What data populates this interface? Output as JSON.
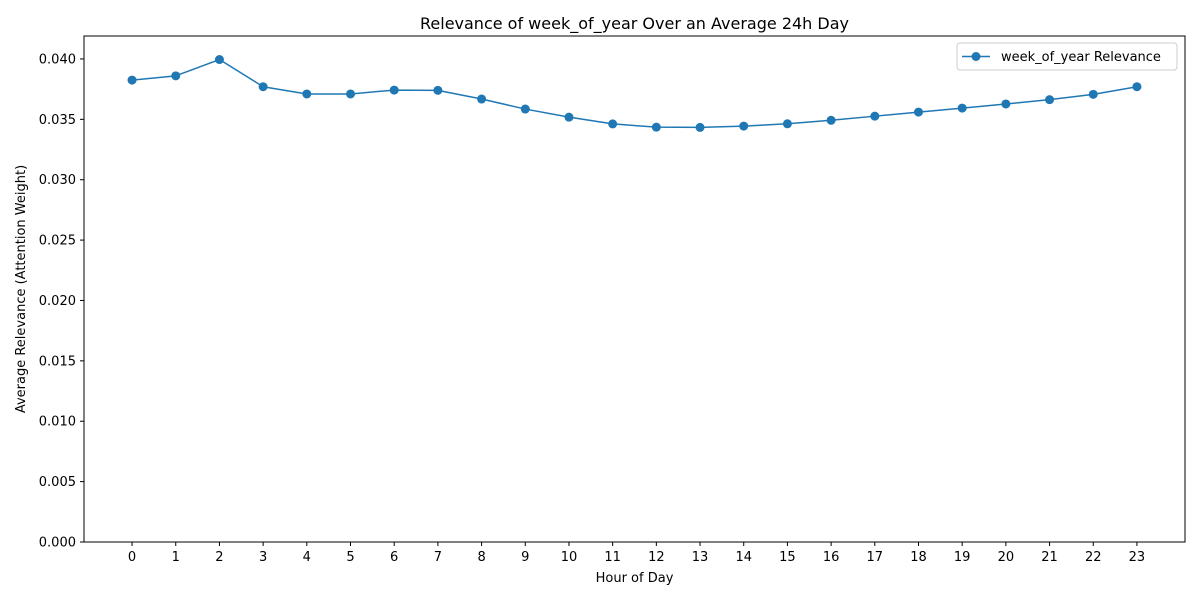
{
  "chart_data": {
    "type": "line",
    "title": "Relevance of week_of_year Over an Average 24h Day",
    "xlabel": "Hour of Day",
    "ylabel": "Average Relevance (Attention Weight)",
    "x": [
      0,
      1,
      2,
      3,
      4,
      5,
      6,
      7,
      8,
      9,
      10,
      11,
      12,
      13,
      14,
      15,
      16,
      17,
      18,
      19,
      20,
      21,
      22,
      23
    ],
    "x_ticks": [
      "0",
      "1",
      "2",
      "3",
      "4",
      "5",
      "6",
      "7",
      "8",
      "9",
      "10",
      "11",
      "12",
      "13",
      "14",
      "15",
      "16",
      "17",
      "18",
      "19",
      "20",
      "21",
      "22",
      "23"
    ],
    "y_ticks": [
      "0.000",
      "0.005",
      "0.010",
      "0.015",
      "0.020",
      "0.025",
      "0.030",
      "0.035",
      "0.040"
    ],
    "y_tick_values": [
      0,
      0.005,
      0.01,
      0.015,
      0.02,
      0.025,
      0.03,
      0.035,
      0.04
    ],
    "xlim": [
      -1.1,
      24.1
    ],
    "ylim": [
      0,
      0.0419
    ],
    "grid": false,
    "legend_position": "top-right",
    "series": [
      {
        "name": "week_of_year Relevance",
        "color": "#1f77b4",
        "marker": "circle",
        "values": [
          0.03825,
          0.0386,
          0.03995,
          0.0377,
          0.0371,
          0.0371,
          0.03742,
          0.0374,
          0.03668,
          0.03585,
          0.03518,
          0.03462,
          0.03435,
          0.03433,
          0.03444,
          0.03463,
          0.03492,
          0.03526,
          0.0356,
          0.03593,
          0.03627,
          0.03663,
          0.03707,
          0.0377
        ]
      }
    ]
  }
}
